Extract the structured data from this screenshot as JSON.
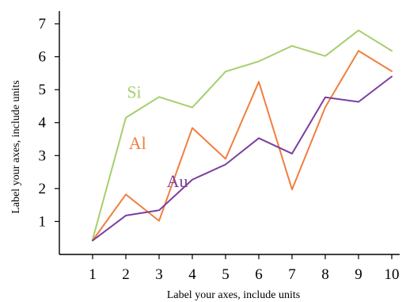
{
  "chart_data": {
    "type": "line",
    "title": "",
    "xlabel": "Label your axes, include units",
    "ylabel": "Label your axes, include units",
    "x": [
      1,
      2,
      3,
      4,
      5,
      6,
      7,
      8,
      9,
      10
    ],
    "xlim": [
      0,
      10
    ],
    "ylim": [
      0,
      7
    ],
    "xticks": [
      1,
      2,
      3,
      4,
      5,
      6,
      7,
      8,
      9,
      10
    ],
    "yticks": [
      1,
      2,
      3,
      4,
      5,
      6,
      7
    ],
    "grid": false,
    "legend": "inline labels",
    "series": [
      {
        "name": "Si",
        "color": "#a6cf6c",
        "values": [
          0.45,
          4.15,
          4.78,
          4.46,
          5.55,
          5.86,
          6.33,
          6.02,
          6.8,
          6.18
        ]
      },
      {
        "name": "Al",
        "color": "#f07f3f",
        "values": [
          0.42,
          1.82,
          1.02,
          3.84,
          2.9,
          5.24,
          1.97,
          4.47,
          6.18,
          5.56
        ]
      },
      {
        "name": "Au",
        "color": "#7b3f9e",
        "values": [
          0.42,
          1.18,
          1.34,
          2.27,
          2.73,
          3.53,
          3.06,
          4.77,
          4.63,
          5.4
        ]
      }
    ],
    "series_labels": [
      {
        "name": "Si",
        "x": 2.25,
        "y": 4.75
      },
      {
        "name": "Al",
        "x": 2.35,
        "y": 3.2
      },
      {
        "name": "Au",
        "x": 3.55,
        "y": 2.05
      }
    ]
  }
}
